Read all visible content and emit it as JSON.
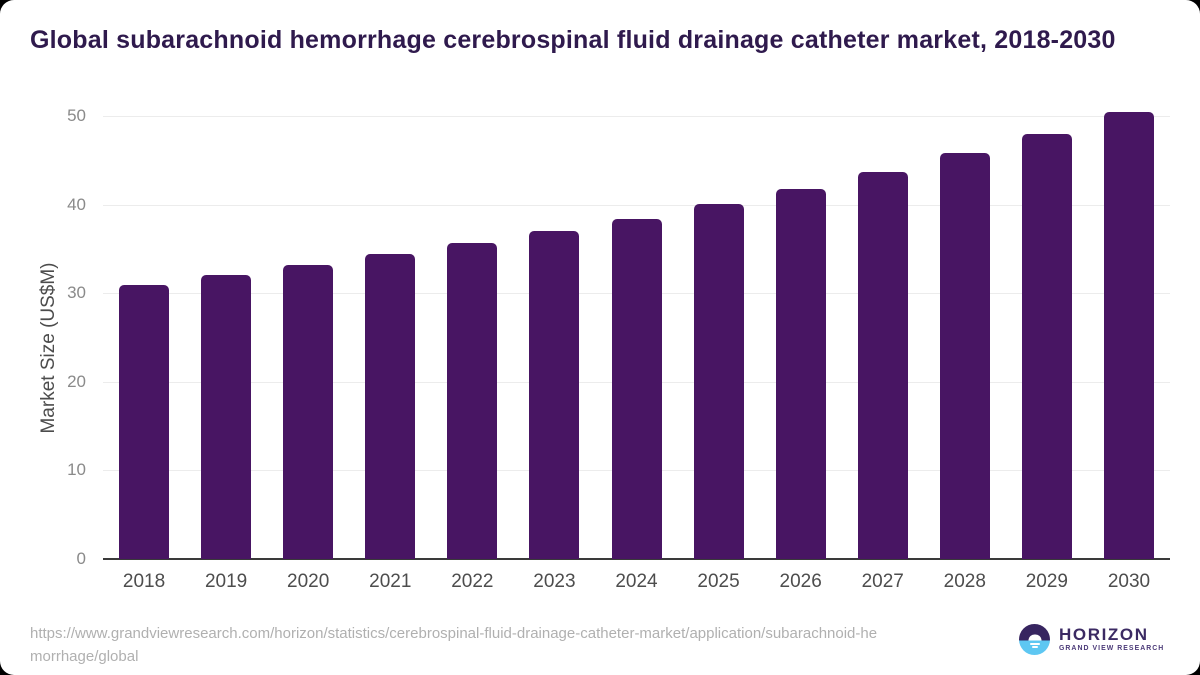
{
  "title": "Global subarachnoid hemorrhage cerebrospinal fluid drainage catheter market, 2018-2030",
  "chart_data": {
    "type": "bar",
    "title": "Global subarachnoid hemorrhage cerebrospinal fluid drainage catheter market, 2018-2030",
    "categories": [
      "2018",
      "2019",
      "2020",
      "2021",
      "2022",
      "2023",
      "2024",
      "2025",
      "2026",
      "2027",
      "2028",
      "2029",
      "2030"
    ],
    "values": [
      30.9,
      32.1,
      33.2,
      34.4,
      35.7,
      37.0,
      38.4,
      40.1,
      41.8,
      43.7,
      45.8,
      48.0,
      50.4
    ],
    "xlabel": "",
    "ylabel": "Market Size (US$M)",
    "ylim": [
      0,
      50
    ],
    "yticks": [
      0,
      10,
      20,
      30,
      40,
      50
    ],
    "grid": true,
    "legend": "none",
    "bar_color": "#481563"
  },
  "colors": {
    "bar": "#481563",
    "title_text": "#2f1a4d",
    "axis_line": "#3a3a3a",
    "gridline": "#ececec",
    "tick_label": "#8a8a8a",
    "category_label": "#4d4d4d",
    "source_text": "#b0b0b0",
    "logo_purple": "#372560",
    "logo_blue": "#5ec7f2",
    "card_background": "#ffffff"
  },
  "footer": {
    "source_url_line1": "https://www.grandviewresearch.com/horizon/statistics/cerebrospinal-fluid-drainage-catheter-market/application/subarachnoid-he",
    "source_url_line2": "morrhage/global",
    "logo": {
      "brand": "HORIZON",
      "subtitle": "GRAND VIEW RESEARCH"
    }
  }
}
